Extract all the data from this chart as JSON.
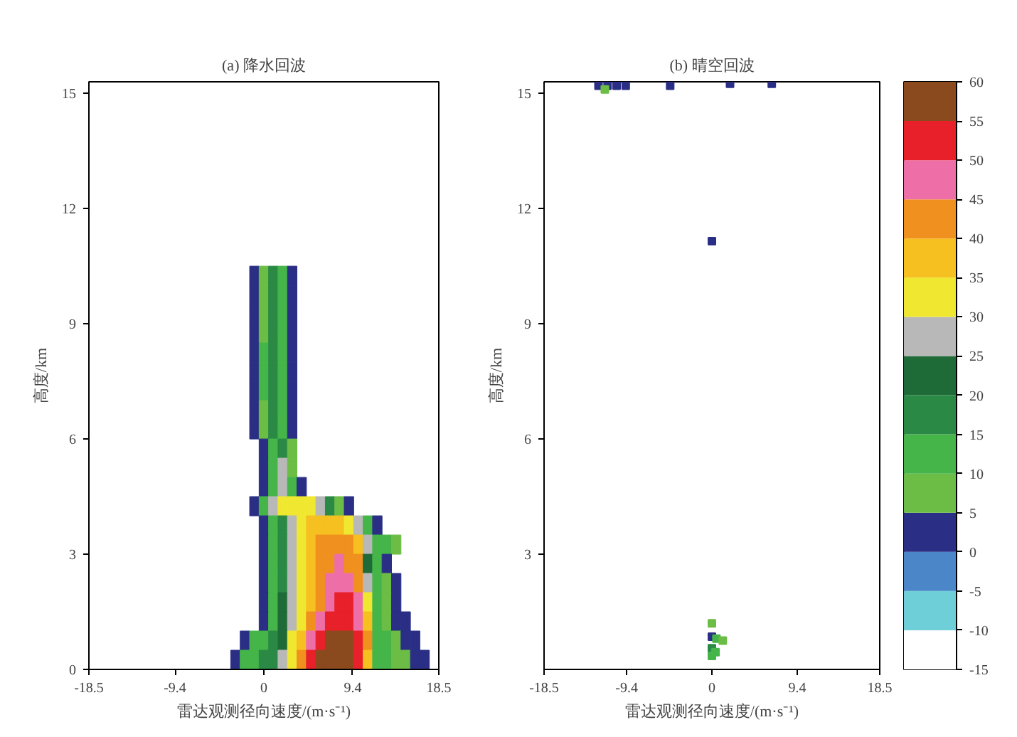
{
  "chart_data": [
    {
      "type": "heatmap",
      "title": "(a) 降水回波",
      "xlabel": "雷达观测径向速度/(m·s⁻¹)",
      "ylabel": "高度/km",
      "xlim": [
        -18.5,
        18.5
      ],
      "xticks": [
        -18.5,
        -9.4,
        0,
        9.4,
        18.5
      ],
      "ylim": [
        0,
        15.3
      ],
      "yticks": [
        0,
        3,
        6,
        9,
        12,
        15
      ],
      "clim": [
        -15,
        60
      ],
      "cticks": [
        -15,
        -10,
        -5,
        0,
        5,
        10,
        15,
        20,
        25,
        30,
        35,
        40,
        45,
        50,
        55,
        60
      ],
      "colors": [
        "#ffffff",
        "#6fcfd8",
        "#4a86c8",
        "#2a2f85",
        "#6cbd45",
        "#45b549",
        "#2a8a45",
        "#1e6b38",
        "#b8b8b8",
        "#f0e830",
        "#f5c020",
        "#f0901e",
        "#ee6fa8",
        "#e8202a",
        "#8b4a1e"
      ],
      "x": [
        -3,
        -2,
        -1,
        0,
        1,
        2,
        3,
        4,
        5,
        6,
        7,
        8,
        9,
        10,
        11,
        12,
        13,
        14,
        15,
        16,
        17
      ],
      "y": [
        10.25,
        9.75,
        9.25,
        8.75,
        8.25,
        7.75,
        7.25,
        6.75,
        6.25,
        5.75,
        5.25,
        4.75,
        4.25,
        3.75,
        3.25,
        2.75,
        2.25,
        1.75,
        1.25,
        0.75,
        0.25
      ],
      "cells": [
        [
          null,
          null,
          2.5,
          7.5,
          17.5,
          12.5,
          2.5,
          null,
          null,
          null,
          null,
          null,
          null,
          null,
          null,
          null,
          null,
          null,
          null,
          null,
          null
        ],
        [
          null,
          null,
          2.5,
          7.5,
          17.5,
          12.5,
          2.5,
          null,
          null,
          null,
          null,
          null,
          null,
          null,
          null,
          null,
          null,
          null,
          null,
          null,
          null
        ],
        [
          null,
          null,
          2.5,
          7.5,
          17.5,
          12.5,
          2.5,
          null,
          null,
          null,
          null,
          null,
          null,
          null,
          null,
          null,
          null,
          null,
          null,
          null,
          null
        ],
        [
          null,
          null,
          2.5,
          7.5,
          17.5,
          12.5,
          2.5,
          null,
          null,
          null,
          null,
          null,
          null,
          null,
          null,
          null,
          null,
          null,
          null,
          null,
          null
        ],
        [
          null,
          null,
          2.5,
          12.5,
          17.5,
          12.5,
          2.5,
          null,
          null,
          null,
          null,
          null,
          null,
          null,
          null,
          null,
          null,
          null,
          null,
          null,
          null
        ],
        [
          null,
          null,
          2.5,
          12.5,
          17.5,
          12.5,
          2.5,
          null,
          null,
          null,
          null,
          null,
          null,
          null,
          null,
          null,
          null,
          null,
          null,
          null,
          null
        ],
        [
          null,
          null,
          2.5,
          12.5,
          17.5,
          12.5,
          2.5,
          null,
          null,
          null,
          null,
          null,
          null,
          null,
          null,
          null,
          null,
          null,
          null,
          null,
          null
        ],
        [
          null,
          null,
          2.5,
          7.5,
          17.5,
          12.5,
          2.5,
          null,
          null,
          null,
          null,
          null,
          null,
          null,
          null,
          null,
          null,
          null,
          null,
          null,
          null
        ],
        [
          null,
          null,
          2.5,
          7.5,
          17.5,
          12.5,
          2.5,
          null,
          null,
          null,
          null,
          null,
          null,
          null,
          null,
          null,
          null,
          null,
          null,
          null,
          null
        ],
        [
          null,
          null,
          null,
          2.5,
          12.5,
          17.5,
          7.5,
          null,
          null,
          null,
          null,
          null,
          null,
          null,
          null,
          null,
          null,
          null,
          null,
          null,
          null
        ],
        [
          null,
          null,
          null,
          2.5,
          12.5,
          27.5,
          7.5,
          null,
          null,
          null,
          null,
          null,
          null,
          null,
          null,
          null,
          null,
          null,
          null,
          null,
          null
        ],
        [
          null,
          null,
          null,
          2.5,
          12.5,
          27.5,
          12.5,
          2.5,
          null,
          null,
          null,
          null,
          null,
          null,
          null,
          null,
          null,
          null,
          null,
          null,
          null
        ],
        [
          null,
          null,
          2.5,
          12.5,
          27.5,
          32.5,
          32.5,
          32.5,
          32.5,
          27.5,
          17.5,
          7.5,
          2.5,
          null,
          null,
          null,
          null,
          null,
          null,
          null,
          null
        ],
        [
          null,
          null,
          null,
          2.5,
          12.5,
          17.5,
          27.5,
          32.5,
          37.5,
          37.5,
          37.5,
          37.5,
          32.5,
          27.5,
          12.5,
          2.5,
          null,
          null,
          null,
          null,
          null
        ],
        [
          null,
          null,
          null,
          2.5,
          12.5,
          17.5,
          27.5,
          32.5,
          37.5,
          42.5,
          42.5,
          42.5,
          42.5,
          37.5,
          27.5,
          12.5,
          12.5,
          7.5,
          null,
          null,
          null
        ],
        [
          null,
          null,
          null,
          2.5,
          12.5,
          17.5,
          27.5,
          32.5,
          37.5,
          42.5,
          42.5,
          47.5,
          42.5,
          42.5,
          22.5,
          12.5,
          2.5,
          null,
          null,
          null,
          null
        ],
        [
          null,
          null,
          null,
          2.5,
          12.5,
          17.5,
          27.5,
          32.5,
          37.5,
          42.5,
          47.5,
          47.5,
          47.5,
          42.5,
          27.5,
          12.5,
          7.5,
          2.5,
          null,
          null,
          null
        ],
        [
          null,
          null,
          null,
          2.5,
          12.5,
          22.5,
          27.5,
          32.5,
          37.5,
          42.5,
          47.5,
          52.5,
          52.5,
          47.5,
          32.5,
          12.5,
          7.5,
          2.5,
          null,
          null,
          null
        ],
        [
          null,
          null,
          null,
          2.5,
          12.5,
          22.5,
          27.5,
          32.5,
          42.5,
          47.5,
          52.5,
          52.5,
          52.5,
          47.5,
          37.5,
          12.5,
          7.5,
          2.5,
          2.5,
          null,
          null
        ],
        [
          null,
          2.5,
          12.5,
          12.5,
          17.5,
          22.5,
          32.5,
          37.5,
          47.5,
          52.5,
          57.5,
          57.5,
          57.5,
          52.5,
          42.5,
          12.5,
          12.5,
          7.5,
          2.5,
          2.5,
          null
        ],
        [
          2.5,
          12.5,
          12.5,
          17.5,
          17.5,
          27.5,
          32.5,
          42.5,
          52.5,
          57.5,
          57.5,
          57.5,
          57.5,
          52.5,
          37.5,
          12.5,
          12.5,
          7.5,
          7.5,
          2.5,
          2.5
        ]
      ]
    },
    {
      "type": "scatter",
      "title": "(b) 晴空回波",
      "xlabel": "雷达观测径向速度/(m·s⁻¹)",
      "ylabel": "高度/km",
      "marker": "square",
      "xlim": [
        -18.5,
        18.5
      ],
      "xticks": [
        -18.5,
        -9.4,
        0,
        9.4,
        18.5
      ],
      "ylim": [
        0,
        15.3
      ],
      "yticks": [
        3,
        6,
        9,
        12,
        15
      ],
      "x": [
        -12.5,
        -11.5,
        -10.5,
        -9.5,
        -11.8,
        -4.6,
        2,
        6.6,
        0,
        0,
        0,
        0.5,
        1.2,
        0,
        0.4,
        0
      ],
      "values": [
        15.2,
        15.2,
        15.2,
        15.2,
        15.1,
        15.2,
        15.25,
        15.25,
        11.15,
        1.2,
        0.85,
        0.8,
        0.75,
        0.55,
        0.45,
        0.35
      ],
      "colors": [
        "#2a2f85",
        "#2a2f85",
        "#2a2f85",
        "#2a2f85",
        "#6cbd45",
        "#2a2f85",
        "#2a2f85",
        "#2a2f85",
        "#2a2f85",
        "#6cbd45",
        "#2a2f85",
        "#45b549",
        "#6cbd45",
        "#2a8a45",
        "#45b549",
        "#45b549"
      ]
    }
  ]
}
